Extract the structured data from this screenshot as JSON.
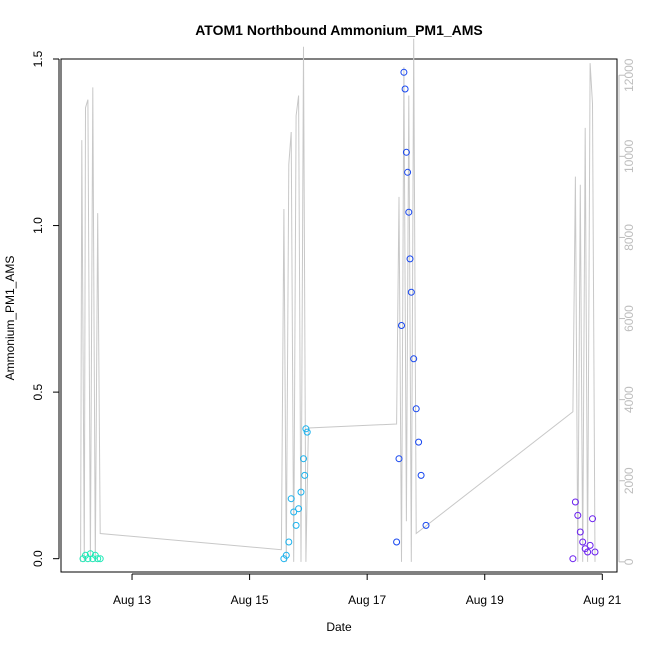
{
  "chart_data": {
    "type": "scatter",
    "title": "ATOM1 Northbound Ammonium_PM1_AMS",
    "xlabel": "Date",
    "ylabel": "Ammonium_PM1_AMS",
    "x_range": [
      "2016-08-11T19:00",
      "2016-08-21T06:00"
    ],
    "ylim": [
      -0.04,
      1.5
    ],
    "y_ticks": [
      "0.0",
      "0.5",
      "1.0",
      "1.5"
    ],
    "x_ticks": [
      {
        "label": "Aug 13",
        "date": "2016-08-13"
      },
      {
        "label": "Aug 15",
        "date": "2016-08-15"
      },
      {
        "label": "Aug 17",
        "date": "2016-08-17"
      },
      {
        "label": "Aug 19",
        "date": "2016-08-19"
      },
      {
        "label": "Aug 21",
        "date": "2016-08-21"
      }
    ],
    "secondary_axis": {
      "ylim": [
        -250,
        12400
      ],
      "ticks": [
        "0",
        "2000",
        "4000",
        "6000",
        "8000",
        "10000",
        "12000"
      ],
      "color": "#bdbdbd"
    },
    "grid": false,
    "series": [
      {
        "color": "#1de9b6",
        "points": [
          [
            "2016-08-12T04:00",
            0.0
          ],
          [
            "2016-08-12T05:00",
            0.01
          ],
          [
            "2016-08-12T06:00",
            0.0
          ],
          [
            "2016-08-12T07:00",
            0.015
          ],
          [
            "2016-08-12T08:00",
            0.0
          ],
          [
            "2016-08-12T09:00",
            0.01
          ],
          [
            "2016-08-12T10:00",
            0.0
          ],
          [
            "2016-08-12T11:00",
            0.0
          ]
        ]
      },
      {
        "color": "#1ab2ee",
        "points": [
          [
            "2016-08-15T14:00",
            0.0
          ],
          [
            "2016-08-15T15:00",
            0.01
          ],
          [
            "2016-08-15T16:00",
            0.05
          ],
          [
            "2016-08-15T17:00",
            0.18
          ],
          [
            "2016-08-15T18:00",
            0.14
          ],
          [
            "2016-08-15T19:00",
            0.1
          ],
          [
            "2016-08-15T20:00",
            0.15
          ],
          [
            "2016-08-15T21:00",
            0.2
          ],
          [
            "2016-08-15T22:00",
            0.3
          ],
          [
            "2016-08-15T23:00",
            0.39
          ],
          [
            "2016-08-15T23:30",
            0.38
          ],
          [
            "2016-08-15T22:30",
            0.25
          ]
        ]
      },
      {
        "color": "#1646f0",
        "points": [
          [
            "2016-08-17T12:00",
            0.05
          ],
          [
            "2016-08-17T13:00",
            0.3
          ],
          [
            "2016-08-17T14:00",
            0.7
          ],
          [
            "2016-08-17T15:00",
            1.46
          ],
          [
            "2016-08-17T15:30",
            1.41
          ],
          [
            "2016-08-17T16:00",
            1.22
          ],
          [
            "2016-08-17T16:30",
            1.16
          ],
          [
            "2016-08-17T17:00",
            1.04
          ],
          [
            "2016-08-17T17:30",
            0.9
          ],
          [
            "2016-08-17T18:00",
            0.8
          ],
          [
            "2016-08-17T19:00",
            0.6
          ],
          [
            "2016-08-17T20:00",
            0.45
          ],
          [
            "2016-08-17T21:00",
            0.35
          ],
          [
            "2016-08-17T22:00",
            0.25
          ],
          [
            "2016-08-18T00:00",
            0.1
          ]
        ]
      },
      {
        "color": "#6a1ff0",
        "points": [
          [
            "2016-08-20T12:00",
            0.0
          ],
          [
            "2016-08-20T13:00",
            0.17
          ],
          [
            "2016-08-20T14:00",
            0.13
          ],
          [
            "2016-08-20T15:00",
            0.08
          ],
          [
            "2016-08-20T16:00",
            0.05
          ],
          [
            "2016-08-20T17:00",
            0.03
          ],
          [
            "2016-08-20T18:00",
            0.02
          ],
          [
            "2016-08-20T19:00",
            0.04
          ],
          [
            "2016-08-20T20:00",
            0.12
          ],
          [
            "2016-08-20T21:00",
            0.02
          ]
        ]
      }
    ],
    "secondary_line": {
      "color": "#c8c8c8",
      "points": [
        [
          "2016-08-12T03:00",
          0
        ],
        [
          "2016-08-12T03:30",
          10400
        ],
        [
          "2016-08-12T04:30",
          0
        ],
        [
          "2016-08-12T05:00",
          11200
        ],
        [
          "2016-08-12T06:00",
          11400
        ],
        [
          "2016-08-12T07:00",
          0
        ],
        [
          "2016-08-12T08:00",
          11700
        ],
        [
          "2016-08-12T09:00",
          0
        ],
        [
          "2016-08-12T10:00",
          8600
        ],
        [
          "2016-08-12T11:00",
          700
        ],
        [
          "2016-08-15T13:00",
          300
        ],
        [
          "2016-08-15T14:00",
          8700
        ],
        [
          "2016-08-15T15:00",
          0
        ],
        [
          "2016-08-15T16:00",
          9800
        ],
        [
          "2016-08-15T17:00",
          10600
        ],
        [
          "2016-08-15T18:00",
          0
        ],
        [
          "2016-08-15T19:00",
          11000
        ],
        [
          "2016-08-15T20:00",
          11500
        ],
        [
          "2016-08-15T21:00",
          0
        ],
        [
          "2016-08-15T22:00",
          12700
        ],
        [
          "2016-08-15T23:00",
          0
        ],
        [
          "2016-08-16T00:00",
          3300
        ],
        [
          "2016-08-17T12:00",
          3400
        ],
        [
          "2016-08-17T13:00",
          9000
        ],
        [
          "2016-08-17T14:00",
          0
        ],
        [
          "2016-08-17T15:00",
          12200
        ],
        [
          "2016-08-17T16:00",
          1000
        ],
        [
          "2016-08-17T17:00",
          11500
        ],
        [
          "2016-08-17T18:00",
          0
        ],
        [
          "2016-08-17T19:00",
          12900
        ],
        [
          "2016-08-17T20:00",
          700
        ],
        [
          "2016-08-20T12:00",
          3700
        ],
        [
          "2016-08-20T13:00",
          9500
        ],
        [
          "2016-08-20T14:00",
          0
        ],
        [
          "2016-08-20T15:00",
          9300
        ],
        [
          "2016-08-20T16:00",
          0
        ],
        [
          "2016-08-20T17:00",
          10700
        ],
        [
          "2016-08-20T18:00",
          0
        ],
        [
          "2016-08-20T19:00",
          12300
        ],
        [
          "2016-08-20T20:00",
          11300
        ],
        [
          "2016-08-20T21:00",
          0
        ]
      ]
    }
  }
}
